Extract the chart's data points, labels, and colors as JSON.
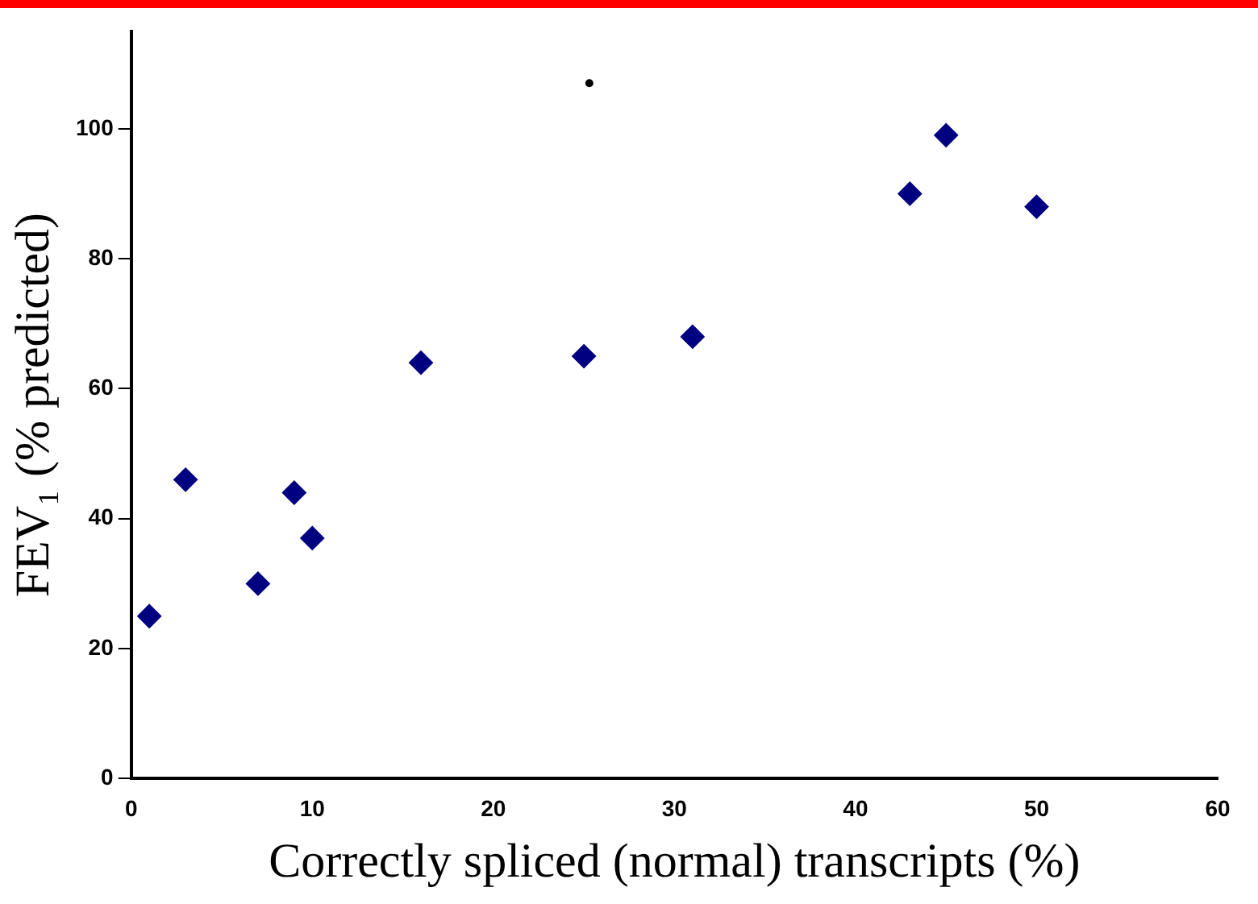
{
  "chart_data": {
    "type": "scatter",
    "xlabel": "Correctly spliced (normal) transcripts (%)",
    "ylabel": "FEV₁ (% predicted)",
    "xlim": [
      0,
      60
    ],
    "xticks": [
      0,
      10,
      20,
      30,
      40,
      50,
      60
    ],
    "ylim": [
      0,
      115
    ],
    "yticks": [
      0,
      20,
      40,
      60,
      80,
      100
    ],
    "grid": false,
    "legend": false,
    "marker": "diamond",
    "series": [
      {
        "color": "#000080",
        "x": [
          1,
          3,
          7,
          9,
          10,
          16,
          25,
          31,
          43,
          45,
          50
        ],
        "values": [
          25,
          46,
          30,
          44,
          37,
          64,
          65,
          68,
          90,
          99,
          88
        ]
      },
      {
        "color": "#000000",
        "marker": "circle",
        "x": [
          25.3
        ],
        "values": [
          107
        ]
      }
    ]
  }
}
